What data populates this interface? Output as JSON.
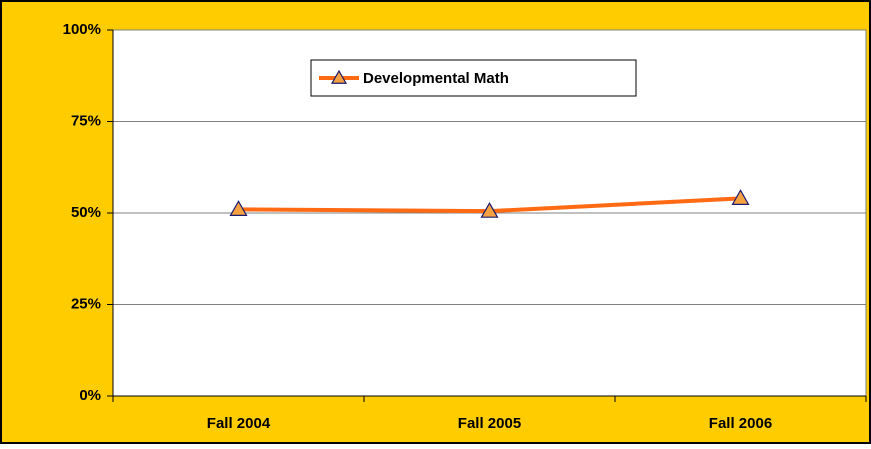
{
  "chart_data": {
    "type": "line",
    "categories": [
      "Fall 2004",
      "Fall 2005",
      "Fall 2006"
    ],
    "series": [
      {
        "name": "Developmental Math",
        "color": "#ff6a13",
        "marker_color": "#f5a142",
        "values": [
          51,
          50.5,
          54
        ]
      }
    ],
    "ylim": [
      0,
      100
    ],
    "yticks": [
      {
        "value": 0,
        "label": "0%"
      },
      {
        "value": 25,
        "label": "25%"
      },
      {
        "value": 50,
        "label": "50%"
      },
      {
        "value": 75,
        "label": "75%"
      },
      {
        "value": 100,
        "label": "100%"
      }
    ],
    "grid": true,
    "legend": "top"
  }
}
